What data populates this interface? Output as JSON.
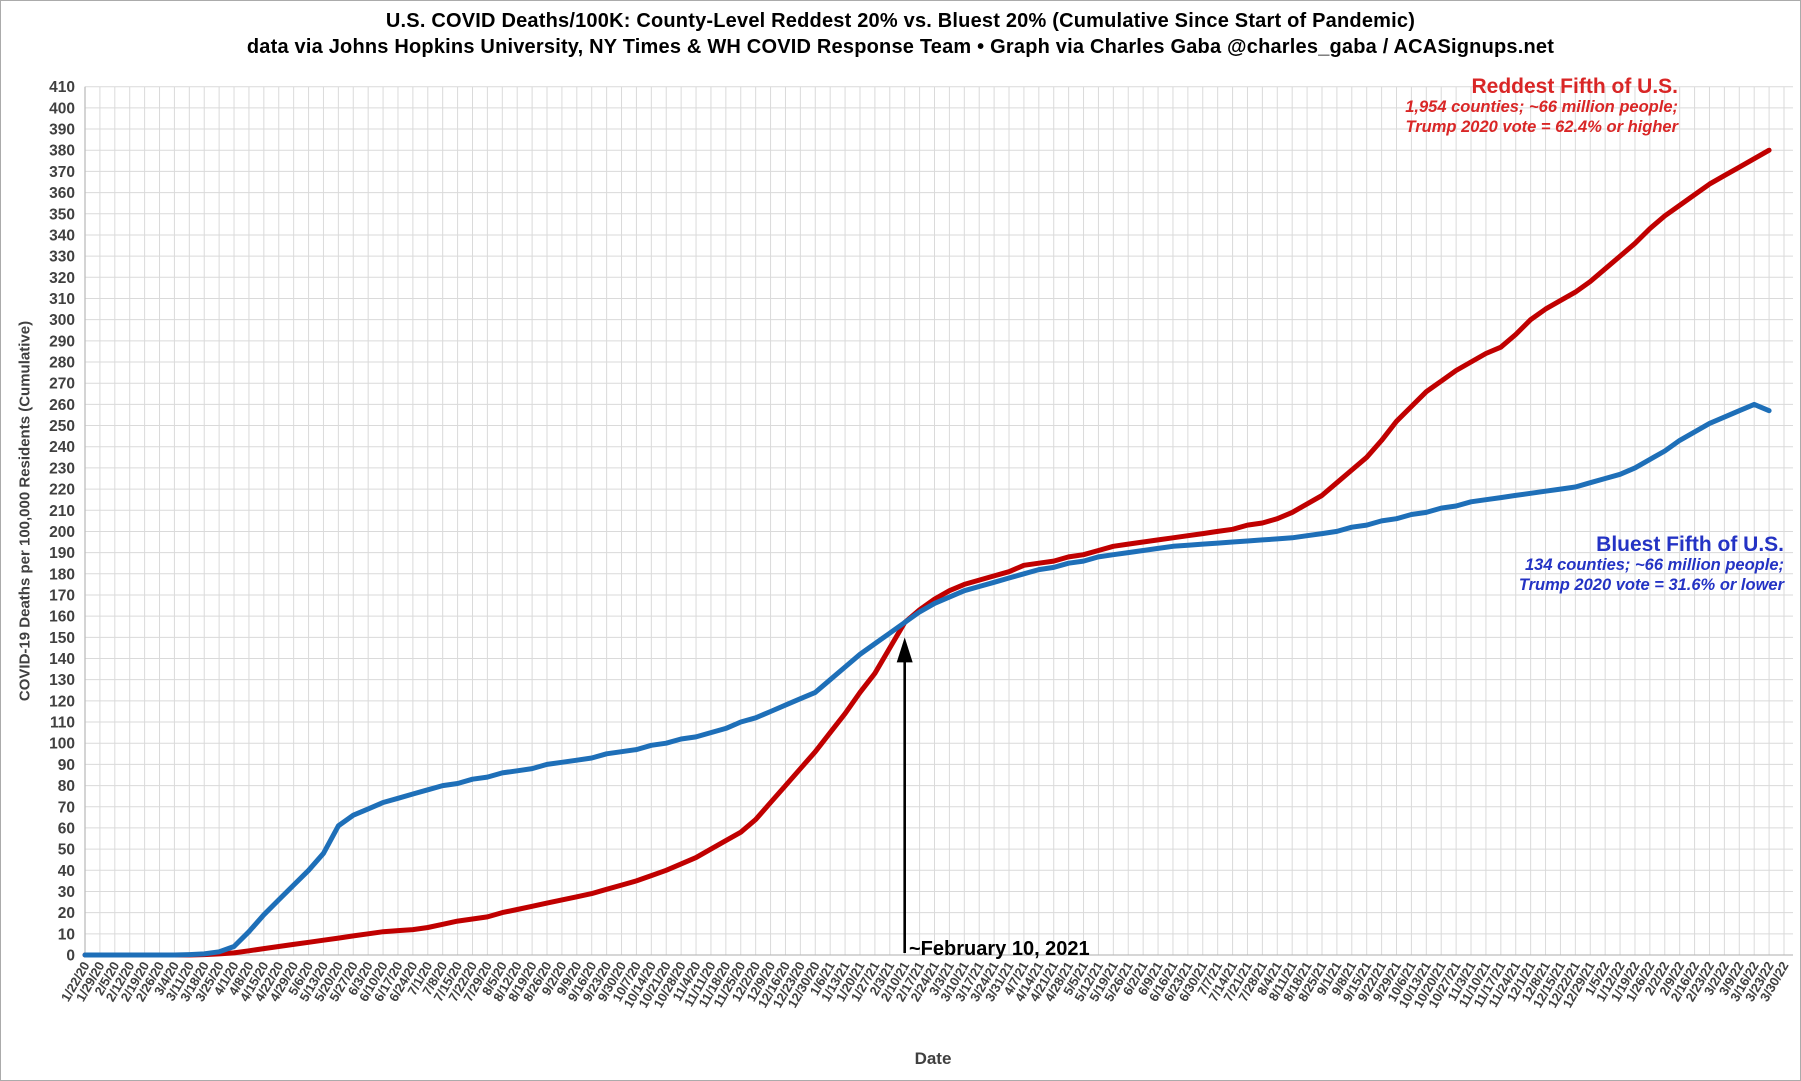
{
  "header": {
    "title": "U.S. COVID Deaths/100K: County-Level Reddest 20% vs. Bluest 20% (Cumulative Since Start of Pandemic)",
    "subtitle": "data via Johns Hopkins University, NY Times & WH COVID Response Team • Graph via Charles Gaba @charles_gaba / ACASignups.net"
  },
  "chart_data": {
    "type": "line",
    "title": "U.S. COVID Deaths/100K: County-Level Reddest 20% vs. Bluest 20% (Cumulative Since Start of Pandemic)",
    "xlabel": "Date",
    "ylabel": "COVID-19 Deaths per 100,000 Residents (Cumulative)",
    "ylim": [
      0,
      410
    ],
    "ytick_step": 10,
    "grid": true,
    "grid_color": "#dadada",
    "axis_color": "#bdbdbd",
    "tick_label_color": "#404040",
    "x": [
      "1/22/20",
      "1/29/20",
      "2/5/20",
      "2/12/20",
      "2/19/20",
      "2/26/20",
      "3/4/20",
      "3/11/20",
      "3/18/20",
      "3/25/20",
      "4/1/20",
      "4/8/20",
      "4/15/20",
      "4/22/20",
      "4/29/20",
      "5/6/20",
      "5/13/20",
      "5/20/20",
      "5/27/20",
      "6/3/20",
      "6/10/20",
      "6/17/20",
      "6/24/20",
      "7/1/20",
      "7/8/20",
      "7/15/20",
      "7/22/20",
      "7/29/20",
      "8/5/20",
      "8/12/20",
      "8/19/20",
      "8/26/20",
      "9/2/20",
      "9/9/20",
      "9/16/20",
      "9/23/20",
      "9/30/20",
      "10/7/20",
      "10/14/20",
      "10/21/20",
      "10/28/20",
      "11/4/20",
      "11/11/20",
      "11/18/20",
      "11/25/20",
      "12/2/20",
      "12/9/20",
      "12/16/20",
      "12/23/20",
      "12/30/20",
      "1/6/21",
      "1/13/21",
      "1/20/21",
      "1/27/21",
      "2/3/21",
      "2/10/21",
      "2/17/21",
      "2/24/21",
      "3/3/21",
      "3/10/21",
      "3/17/21",
      "3/24/21",
      "3/31/21",
      "4/7/21",
      "4/14/21",
      "4/21/21",
      "4/28/21",
      "5/5/21",
      "5/12/21",
      "5/19/21",
      "5/26/21",
      "6/2/21",
      "6/9/21",
      "6/16/21",
      "6/23/21",
      "6/30/21",
      "7/7/21",
      "7/14/21",
      "7/21/21",
      "7/28/21",
      "8/4/21",
      "8/11/21",
      "8/18/21",
      "8/25/21",
      "9/1/21",
      "9/8/21",
      "9/15/21",
      "9/22/21",
      "9/29/21",
      "10/6/21",
      "10/13/21",
      "10/20/21",
      "10/27/21",
      "11/3/21",
      "11/10/21",
      "11/17/21",
      "11/24/21",
      "12/1/21",
      "12/8/21",
      "12/15/21",
      "12/22/21",
      "12/29/21",
      "1/5/22",
      "1/12/22",
      "1/19/22",
      "1/26/22",
      "2/2/22",
      "2/9/22",
      "2/16/22",
      "2/23/22",
      "3/2/22",
      "3/9/22",
      "3/16/22",
      "3/23/22",
      "3/30/22"
    ],
    "series": [
      {
        "name": "Reddest Fifth of U.S.",
        "color": "#c00000",
        "values": [
          0,
          0,
          0,
          0,
          0,
          0,
          0,
          0,
          0.2,
          0.5,
          1,
          2,
          3,
          4,
          5,
          6,
          7,
          8,
          9,
          10,
          11,
          11.5,
          12,
          13,
          14.5,
          16,
          17,
          18,
          20,
          21.5,
          23,
          24.5,
          26,
          27.5,
          29,
          31,
          33,
          35,
          37.5,
          40,
          43,
          46,
          50,
          54,
          58,
          64,
          72,
          80,
          88,
          96,
          105,
          114,
          124,
          133,
          145,
          157,
          163,
          168,
          172,
          175,
          177,
          179,
          181,
          184,
          185,
          186,
          188,
          189,
          191,
          193,
          194,
          195,
          196,
          197,
          198,
          199,
          200,
          201,
          203,
          204,
          206,
          209,
          213,
          217,
          223,
          229,
          235,
          243,
          252,
          259,
          266,
          271,
          276,
          280,
          284,
          287,
          293,
          300,
          305,
          309,
          313,
          318,
          324,
          330,
          336,
          343,
          349,
          354,
          359,
          364,
          368,
          372,
          376,
          380
        ]
      },
      {
        "name": "Bluest Fifth of U.S.",
        "color": "#1e6fb8",
        "values": [
          0,
          0,
          0,
          0,
          0,
          0,
          0,
          0.2,
          0.5,
          1.5,
          4,
          11,
          19,
          26,
          33,
          40,
          48,
          61,
          66,
          69,
          72,
          74,
          76,
          78,
          80,
          81,
          83,
          84,
          86,
          87,
          88,
          90,
          91,
          92,
          93,
          95,
          96,
          97,
          99,
          100,
          102,
          103,
          105,
          107,
          110,
          112,
          115,
          118,
          121,
          124,
          130,
          136,
          142,
          147,
          152,
          157,
          162,
          166,
          169,
          172,
          174,
          176,
          178,
          180,
          182,
          183,
          185,
          186,
          188,
          189,
          190,
          191,
          192,
          193,
          193.5,
          194,
          194.5,
          195,
          195.5,
          196,
          196.5,
          197,
          198,
          199,
          200,
          202,
          203,
          205,
          206,
          208,
          209,
          211,
          212,
          214,
          215,
          216,
          217,
          218,
          219,
          220,
          221,
          223,
          225,
          227,
          230,
          234,
          238,
          243,
          247,
          251,
          254,
          257,
          260,
          257
        ]
      }
    ],
    "annotations": {
      "red_label": {
        "title": "Reddest Fifth of U.S.",
        "line2": "1,954 counties; ~66 million people;",
        "line3": "Trump 2020 vote = 62.4% or higher",
        "color": "#d92626"
      },
      "blue_label": {
        "title": "Bluest Fifth of U.S.",
        "line2": "134 counties; ~66 million people;",
        "line3": "Trump 2020 vote = 31.6% or lower",
        "color": "#2433c4"
      },
      "arrow_label": {
        "text": "~February 10, 2021",
        "x_date": "2/10/21",
        "y_from": 0,
        "y_to": 150,
        "color": "#000000"
      }
    }
  }
}
